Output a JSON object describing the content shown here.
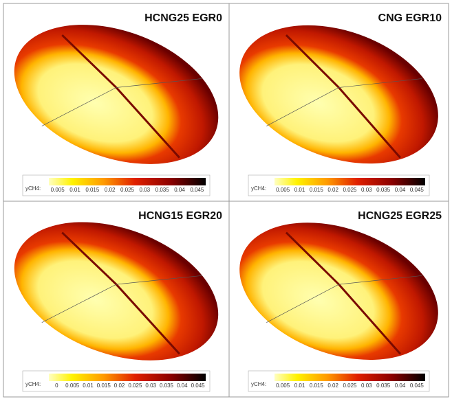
{
  "panels": [
    {
      "title": "HCNG25 EGR0",
      "legend_label": "yCH4:",
      "ticks": [
        "0.005",
        "0.01",
        "0.015",
        "0.02",
        "0.025",
        "0.03",
        "0.035",
        "0.04",
        "0.045"
      ]
    },
    {
      "title": "CNG EGR10",
      "legend_label": "yCH4:",
      "ticks": [
        "0.005",
        "0.01",
        "0.015",
        "0.02",
        "0.025",
        "0.03",
        "0.035",
        "0.04",
        "0.045"
      ]
    },
    {
      "title": "HCNG15 EGR20",
      "legend_label": "yCH4:",
      "ticks": [
        "0",
        "0.005",
        "0.01",
        "0.015",
        "0.02",
        "0.025",
        "0.03",
        "0.035",
        "0.04",
        "0.045"
      ]
    },
    {
      "title": "HCNG25 EGR25",
      "legend_label": "yCH4:",
      "ticks": [
        "0.005",
        "0.01",
        "0.015",
        "0.02",
        "0.025",
        "0.03",
        "0.035",
        "0.04",
        "0.045"
      ]
    }
  ]
}
